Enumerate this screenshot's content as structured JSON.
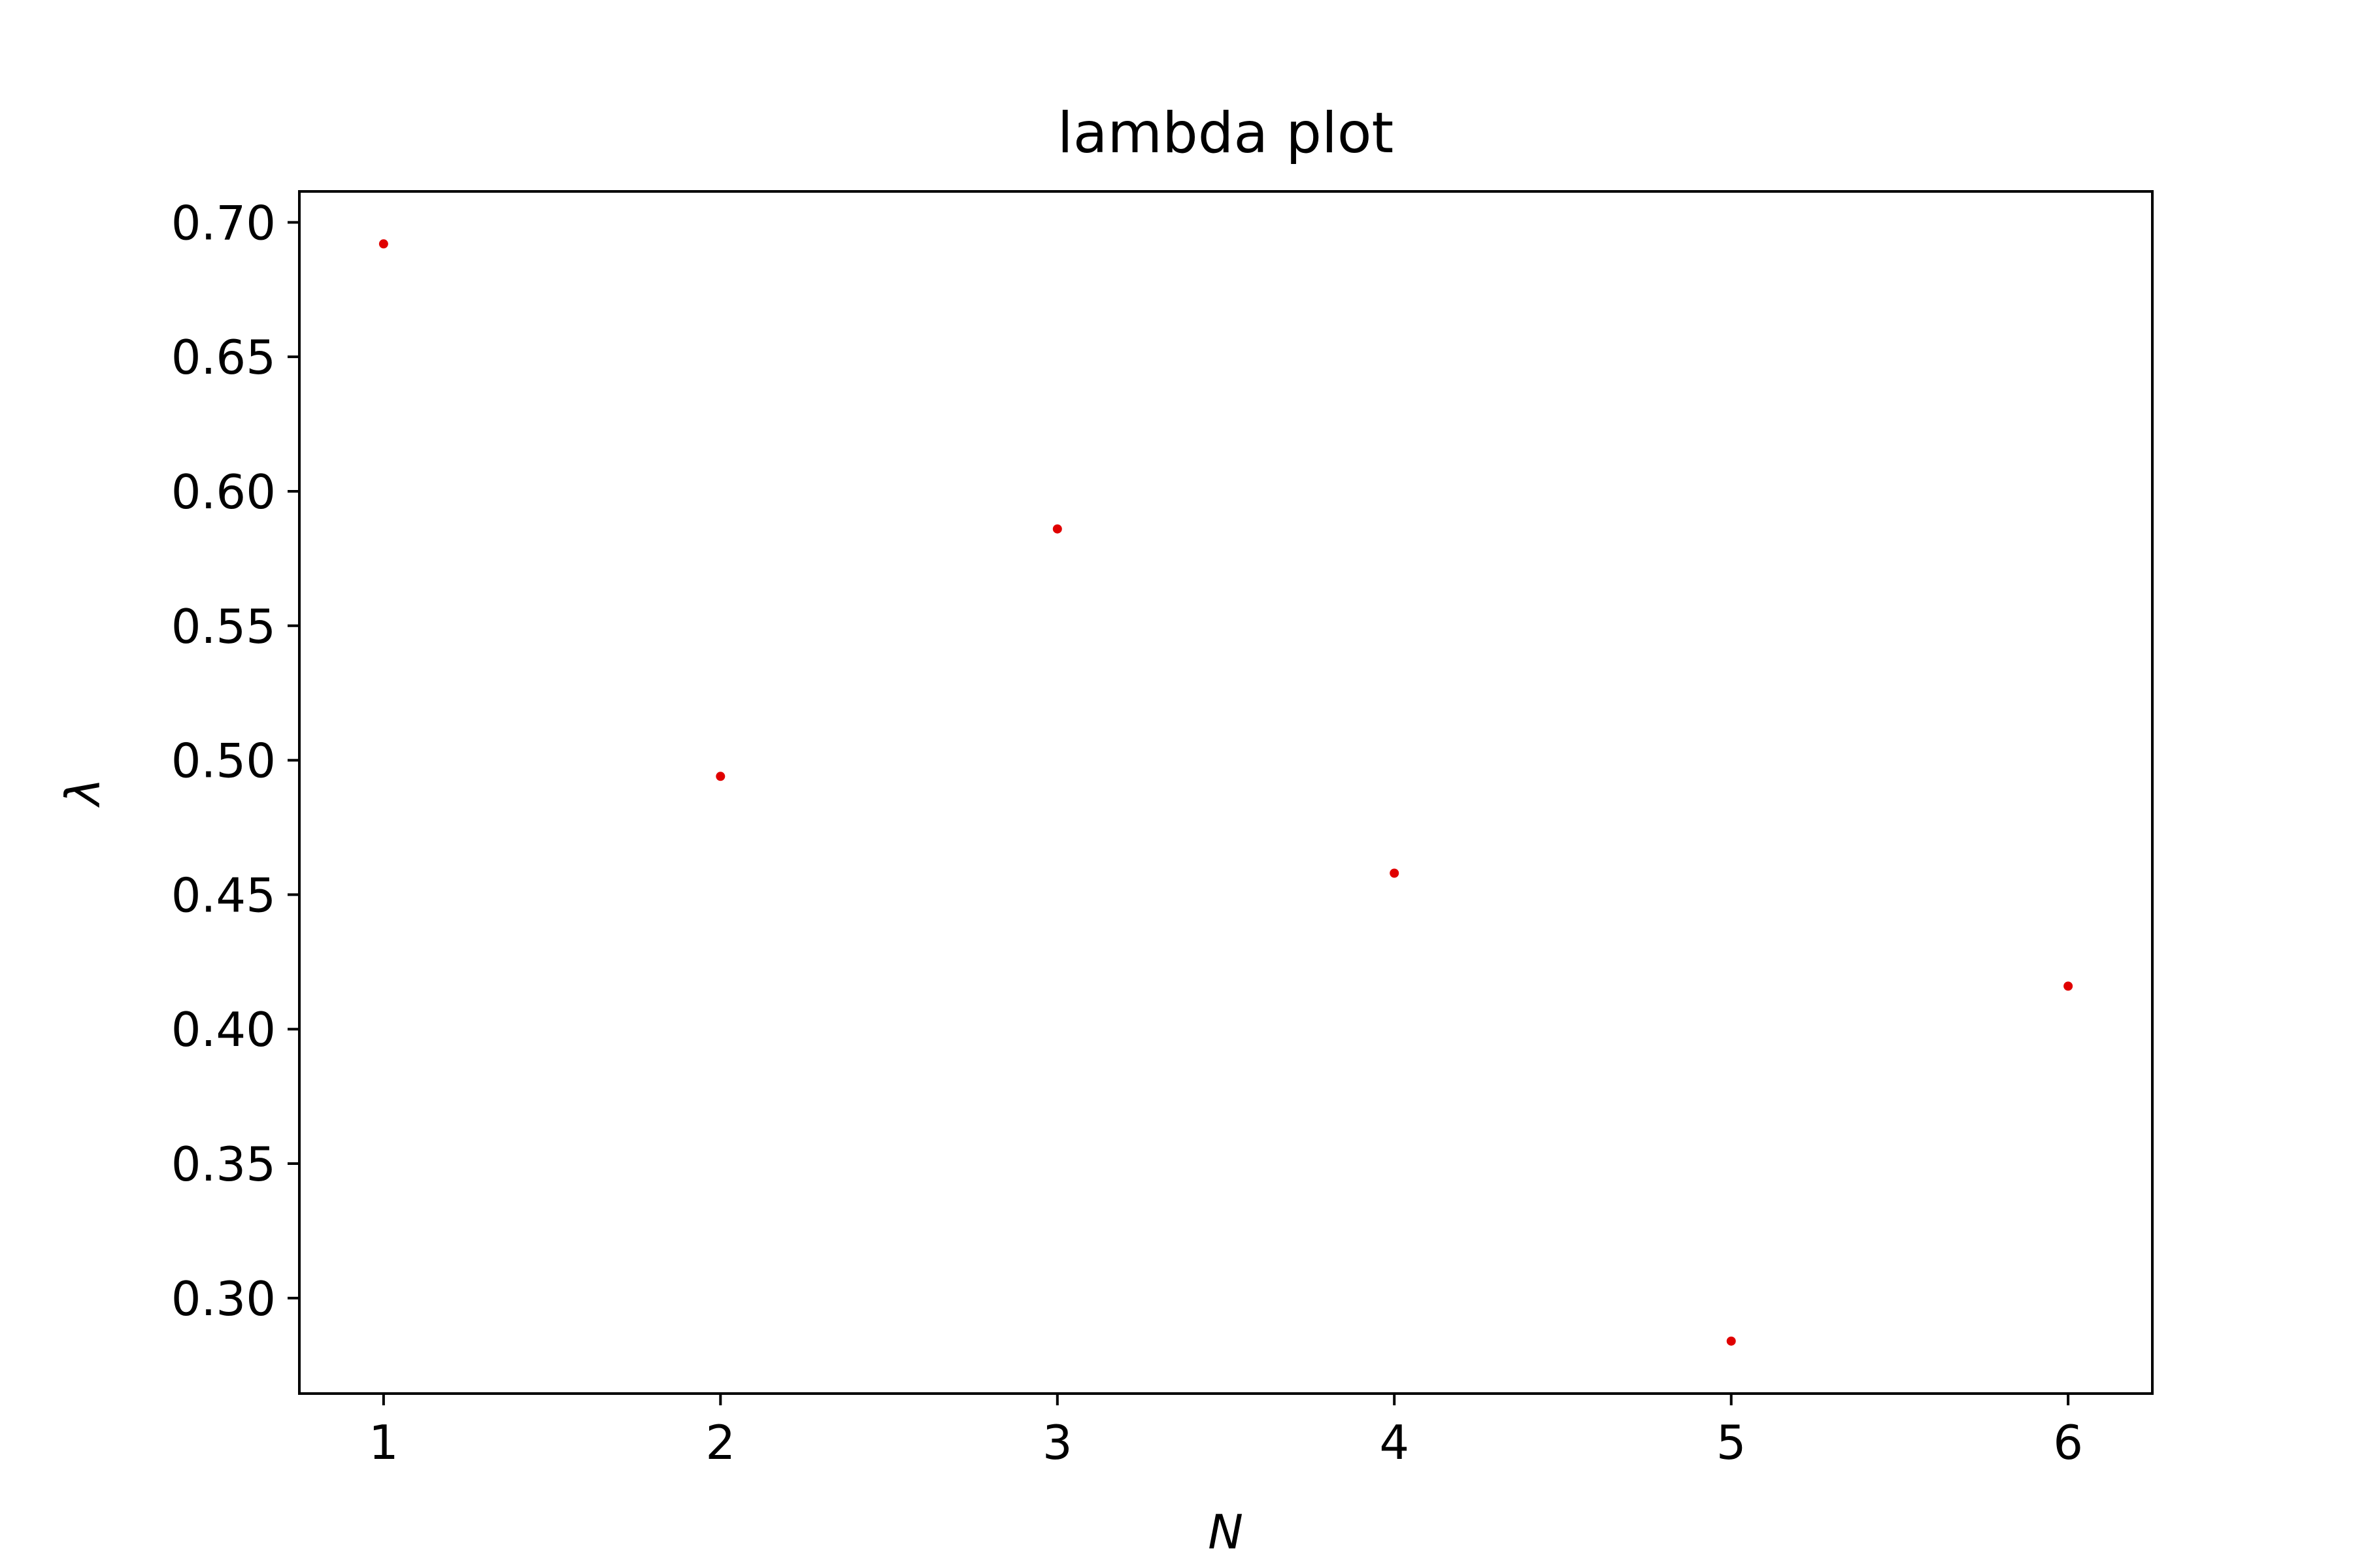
{
  "chart_data": {
    "type": "scatter",
    "title": "lambda plot",
    "xlabel": "N",
    "ylabel": "λ",
    "x": [
      1,
      2,
      3,
      4,
      5,
      6
    ],
    "y": [
      0.692,
      0.494,
      0.586,
      0.458,
      0.284,
      0.416
    ],
    "xlim": [
      0.75,
      6.25
    ],
    "ylim": [
      0.2645,
      0.7115
    ],
    "xticks": [
      1,
      2,
      3,
      4,
      5,
      6
    ],
    "xtick_labels": [
      "1",
      "2",
      "3",
      "4",
      "5",
      "6"
    ],
    "yticks": [
      0.3,
      0.35,
      0.4,
      0.45,
      0.5,
      0.55,
      0.6,
      0.65,
      0.7
    ],
    "ytick_labels": [
      "0.30",
      "0.35",
      "0.40",
      "0.45",
      "0.50",
      "0.55",
      "0.60",
      "0.65",
      "0.70"
    ],
    "grid": false,
    "marker_color": "#e00000",
    "axis_color": "#000000"
  }
}
